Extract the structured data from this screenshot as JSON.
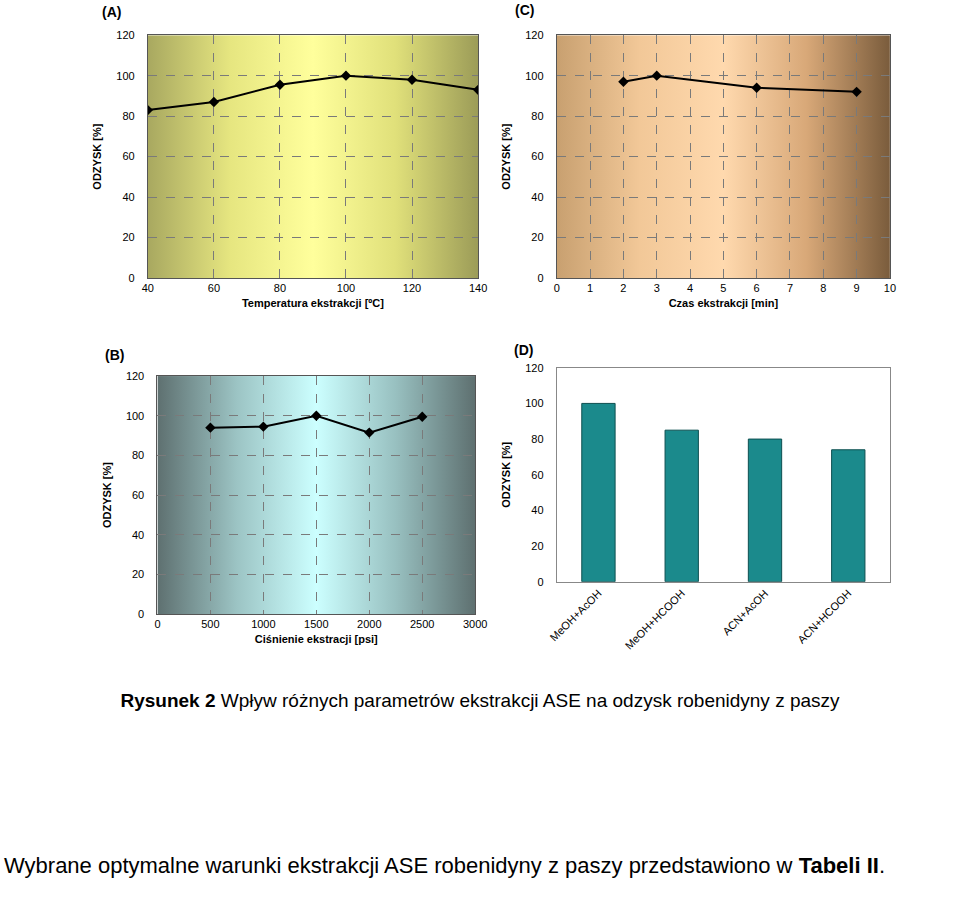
{
  "chart_data": [
    {
      "type": "line",
      "title": "(A)",
      "xlabel": "Temperatura ekstrakcji [ºC]",
      "ylabel": "ODZYSK [%]",
      "x": [
        40,
        60,
        80,
        100,
        120,
        140
      ],
      "values": [
        83,
        87,
        95.5,
        100,
        98,
        93
      ],
      "color": "#000000",
      "marker": "diamond",
      "line_style": "solid",
      "xlim": [
        40,
        140
      ],
      "xticks": [
        40,
        60,
        80,
        100,
        120,
        140
      ],
      "ylim": [
        0,
        120
      ],
      "yticks": [
        0,
        20,
        40,
        60,
        80,
        100,
        120
      ],
      "grid": true
    },
    {
      "type": "line",
      "title": "(B)",
      "xlabel": "Ciśnienie ekstracji [psi]",
      "ylabel": "ODZYSK [%]",
      "x": [
        500,
        1000,
        1500,
        2000,
        2500
      ],
      "values": [
        94,
        94.5,
        100,
        91.5,
        99.5
      ],
      "color": "#000000",
      "marker": "diamond",
      "line_style": "solid",
      "xlim": [
        0,
        3000
      ],
      "xticks": [
        0,
        500,
        1000,
        1500,
        2000,
        2500,
        3000
      ],
      "ylim": [
        0,
        120
      ],
      "yticks": [
        0,
        20,
        40,
        60,
        80,
        100,
        120
      ],
      "grid": true
    },
    {
      "type": "line",
      "title": "(C)",
      "xlabel": "Czas ekstrakcji [min]",
      "ylabel": "ODZYSK [%]",
      "x": [
        2,
        3,
        6,
        9
      ],
      "values": [
        97,
        100,
        94,
        92
      ],
      "color": "#000000",
      "marker": "diamond",
      "line_style": "solid",
      "xlim": [
        0,
        10
      ],
      "xticks": [
        0,
        1,
        2,
        3,
        4,
        5,
        6,
        7,
        8,
        9,
        10
      ],
      "ylim": [
        0,
        120
      ],
      "yticks": [
        0,
        20,
        40,
        60,
        80,
        100,
        120
      ],
      "grid": true
    },
    {
      "type": "bar",
      "title": "(D)",
      "ylabel": "ODZYSK [%]",
      "categories": [
        "MeOH+AcOH",
        "MeOH+HCOOH",
        "ACN+AcOH",
        "ACN+HCOOH"
      ],
      "values": [
        100,
        85,
        80,
        74
      ],
      "color": "#1b8a8c",
      "ylim": [
        0,
        120
      ],
      "yticks": [
        0,
        20,
        40,
        60,
        80,
        100,
        120
      ],
      "grid": false
    }
  ],
  "caption": {
    "label": "Rysunek 2",
    "text": "Wpływ różnych parametrów ekstrakcji ASE na odzysk robenidyny z paszy"
  },
  "paragraph": {
    "text": "Wybrane optymalne warunki ekstrakcji ASE robenidyny z paszy przedstawiono w ",
    "bold": "Tabeli II",
    "end": "."
  }
}
